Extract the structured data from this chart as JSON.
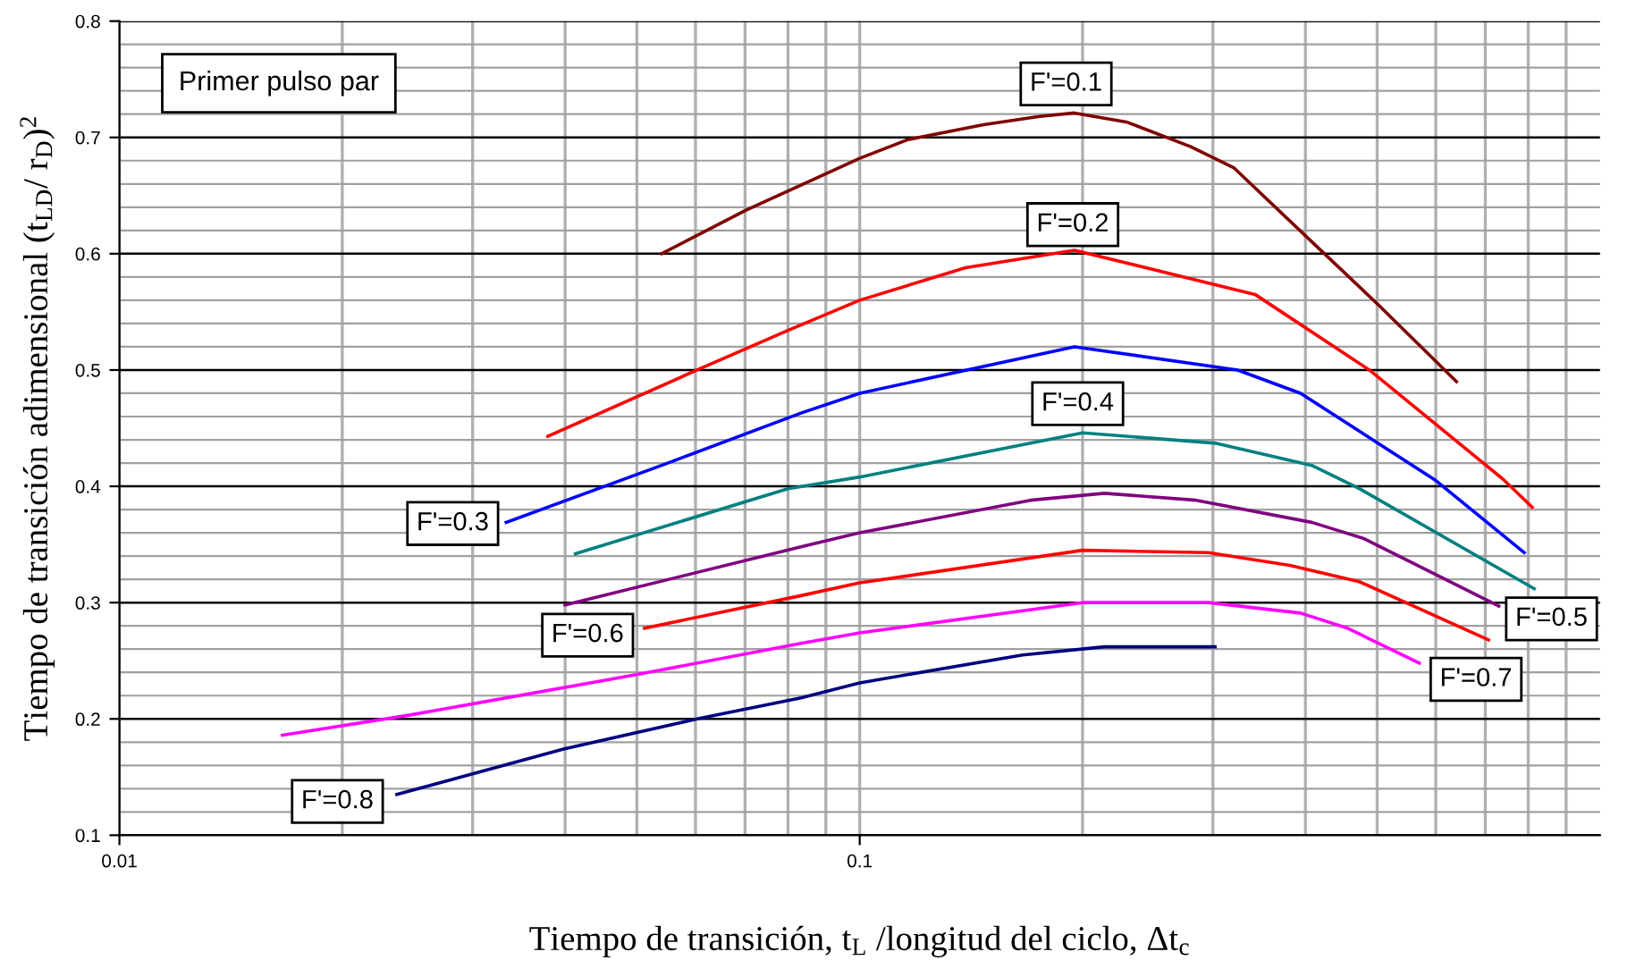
{
  "chart_data": {
    "type": "line",
    "xlabel": "Tiempo de transición, t$_{L}$ /longitud del ciclo, Δt$_{c}$",
    "ylabel": "Tiempo de transición adimensional (t$_{LD}$/ r$_{D}$)$^{2}$",
    "annotations": [
      "Primer pulso par"
    ],
    "log": "x",
    "xlim": [
      0.01,
      1
    ],
    "xticks": [
      0.01,
      0.1
    ],
    "ylim": [
      0.1,
      0.8
    ],
    "yticks": [
      0.1,
      0.2,
      0.3,
      0.4,
      0.5,
      0.6,
      0.7,
      0.8
    ],
    "grid": true,
    "legend": false,
    "marker": "none",
    "line_style": "solid",
    "series": [
      {
        "name": "F'=0.1",
        "color": "#800000",
        "x": [
          0.054,
          0.07,
          0.1,
          0.116,
          0.147,
          0.175,
          0.195,
          0.23,
          0.28,
          0.32,
          0.41,
          0.5,
          0.64
        ],
        "values": [
          0.6,
          0.637,
          0.682,
          0.698,
          0.711,
          0.718,
          0.721,
          0.713,
          0.692,
          0.674,
          0.609,
          0.557,
          0.49
        ]
      },
      {
        "name": "F'=0.2",
        "color": "#ff0000",
        "x": [
          0.0379,
          0.0603,
          0.08,
          0.1,
          0.139,
          0.195,
          0.342,
          0.488,
          0.74,
          0.81
        ],
        "values": [
          0.443,
          0.5,
          0.534,
          0.56,
          0.588,
          0.603,
          0.565,
          0.5,
          0.406,
          0.382
        ]
      },
      {
        "name": "F'=0.3",
        "color": "#0000ff",
        "x": [
          0.0333,
          0.054,
          0.0833,
          0.1,
          0.195,
          0.324,
          0.394,
          0.6,
          0.79
        ],
        "values": [
          0.369,
          0.418,
          0.463,
          0.48,
          0.52,
          0.5,
          0.48,
          0.405,
          0.343
        ]
      },
      {
        "name": "F'=0.4",
        "color": "#008080",
        "x": [
          0.0413,
          0.08,
          0.1,
          0.2,
          0.303,
          0.408,
          0.473,
          0.815
        ],
        "values": [
          0.342,
          0.398,
          0.408,
          0.446,
          0.437,
          0.418,
          0.398,
          0.312
        ]
      },
      {
        "name": "F'=0.5",
        "color": "#800080",
        "x": [
          0.04,
          0.0833,
          0.1,
          0.17,
          0.214,
          0.285,
          0.408,
          0.48,
          0.73
        ],
        "values": [
          0.298,
          0.348,
          0.36,
          0.388,
          0.394,
          0.388,
          0.369,
          0.355,
          0.297
        ]
      },
      {
        "name": "F'=0.6",
        "color": "#ff0000",
        "x": [
          0.0512,
          0.0833,
          0.1,
          0.2,
          0.296,
          0.381,
          0.473,
          0.707
        ],
        "values": [
          0.278,
          0.306,
          0.317,
          0.345,
          0.343,
          0.332,
          0.318,
          0.268
        ]
      },
      {
        "name": "F'=0.7",
        "color": "#ff00ff",
        "x": [
          0.0166,
          0.0245,
          0.0499,
          0.0833,
          0.1,
          0.2,
          0.296,
          0.394,
          0.456,
          0.57
        ],
        "values": [
          0.186,
          0.203,
          0.238,
          0.265,
          0.274,
          0.3,
          0.3,
          0.291,
          0.278,
          0.248
        ]
      },
      {
        "name": "F'=0.8",
        "color": "#000080",
        "x": [
          0.0237,
          0.0398,
          0.0603,
          0.0833,
          0.1,
          0.166,
          0.214,
          0.302
        ],
        "values": [
          0.135,
          0.174,
          0.2,
          0.218,
          0.231,
          0.255,
          0.262,
          0.262
        ]
      }
    ]
  }
}
